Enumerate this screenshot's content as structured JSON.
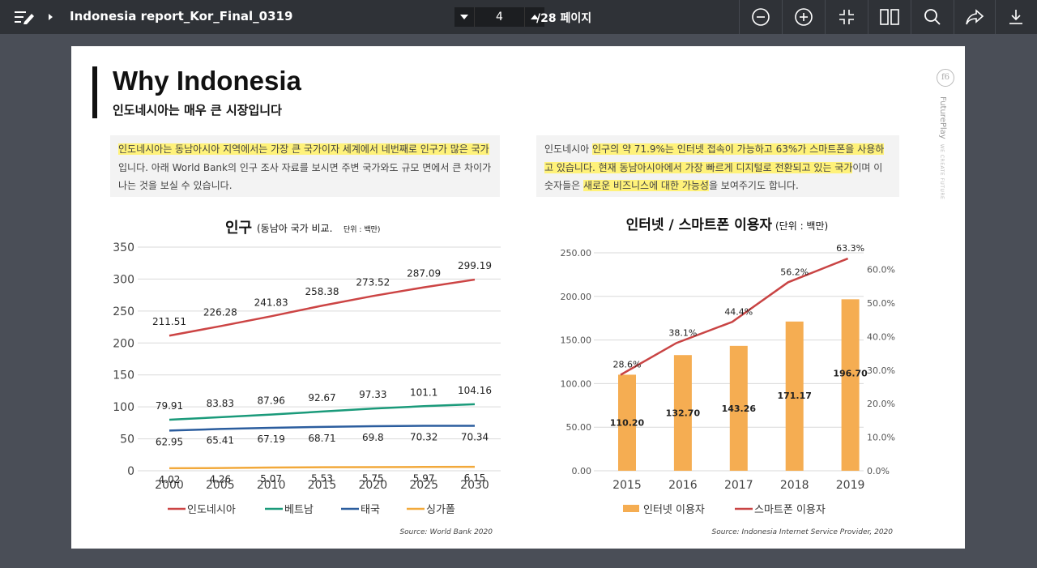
{
  "toolbar": {
    "doc_title": "Indonesia report_Kor_Final_0319",
    "page_current": "4",
    "page_total": "/28 페이지",
    "icons": [
      "menu-edit-icon",
      "caret-right-icon",
      "chevron-down-icon",
      "chevron-up-icon",
      "zoom-out-icon",
      "zoom-in-icon",
      "fit-icon",
      "two-page-icon",
      "search-icon",
      "share-icon",
      "download-icon"
    ]
  },
  "slide": {
    "title": "Why Indonesia",
    "subtitle": "인도네시아는 매우 큰 시장입니다",
    "brand": "FuturePlay",
    "brand_tag": "WE CREATE FUTURE",
    "brand_mark": "f6",
    "note_left": {
      "hl1": "인도네시아는 동남아시아 지역에서는 가장 큰 국가이자 세계에서 네번째로 인구가 많은 국",
      "hl2": "가",
      "rest": "입니다. 아래 World Bank의 인구 조사 자료를 보시면 주변 국가와도 규모 면에서 큰 차이가 나는 것을 보실 수 있습니다."
    },
    "note_right": {
      "t1": "인도네시아 ",
      "hl1": "인구의 약 71.9%는 인터넷 접속이 가능하고 63%가 스마트폰을 사용하고 있습니다. 현재 동남아시아에서 가장 빠르게 디지털로 전환되고 있는 국가",
      "t2": "이며 이 숫자들은 ",
      "hl2": "새로운 비즈니스에 대한 가능성",
      "t3": "을 보여주기도 합니다."
    },
    "highlight_color": "#fff27a"
  },
  "chart_data": [
    {
      "type": "line",
      "title": "인구",
      "subtitle": "(동남아 국가 비교.",
      "unit_note": "단위 : 백만)",
      "x": [
        2000,
        2005,
        2010,
        2015,
        2020,
        2025,
        2030
      ],
      "ylim": [
        0,
        350
      ],
      "yticks": [
        0,
        50,
        100,
        150,
        200,
        250,
        300,
        350
      ],
      "series": [
        {
          "name": "인도네시아",
          "color": "#cc4444",
          "values": [
            211.51,
            226.28,
            241.83,
            258.38,
            273.52,
            287.09,
            299.19
          ]
        },
        {
          "name": "베트남",
          "color": "#1a9a7a",
          "values": [
            79.91,
            83.83,
            87.96,
            92.67,
            97.33,
            101.1,
            104.16
          ]
        },
        {
          "name": "태국",
          "color": "#2b5d9e",
          "values": [
            62.95,
            65.41,
            67.19,
            68.71,
            69.8,
            70.32,
            70.34
          ]
        },
        {
          "name": "싱가폴",
          "color": "#f2a93b",
          "values": [
            4.02,
            4.26,
            5.07,
            5.53,
            5.75,
            5.97,
            6.15
          ]
        }
      ],
      "source": "Source: World Bank 2020",
      "grid": true,
      "legend": "bottom"
    },
    {
      "type": "bar",
      "title": "인터넷 / 스마트폰 이용자",
      "unit_note": "(단위 : 백만)",
      "categories": [
        "2015",
        "2016",
        "2017",
        "2018",
        "2019"
      ],
      "series": [
        {
          "name": "인터넷 이용자",
          "type": "bar",
          "color": "#f5ad52",
          "values": [
            110.2,
            132.7,
            143.26,
            171.17,
            196.7
          ],
          "labels": [
            "110.20",
            "132.70",
            "143.26",
            "171.17",
            "196.70"
          ]
        },
        {
          "name": "스마트폰 이용자",
          "type": "line",
          "color": "#c94444",
          "values": [
            28.6,
            38.1,
            44.4,
            56.2,
            63.3
          ],
          "labels": [
            "28.6%",
            "38.1%",
            "44.4%",
            "56.2%",
            "63.3%"
          ]
        }
      ],
      "ylim_left": [
        0,
        250
      ],
      "yticks_left": [
        "0.00",
        "50.00",
        "100.00",
        "150.00",
        "200.00",
        "250.00"
      ],
      "ylim_right": [
        0,
        65
      ],
      "yticks_right": [
        "0.0%",
        "10.0%",
        "20.0%",
        "30.0%",
        "40.0%",
        "50.0%",
        "60.0%"
      ],
      "source": "Source: Indonesia Internet Service Provider, 2020",
      "grid": true,
      "legend": "bottom"
    }
  ]
}
